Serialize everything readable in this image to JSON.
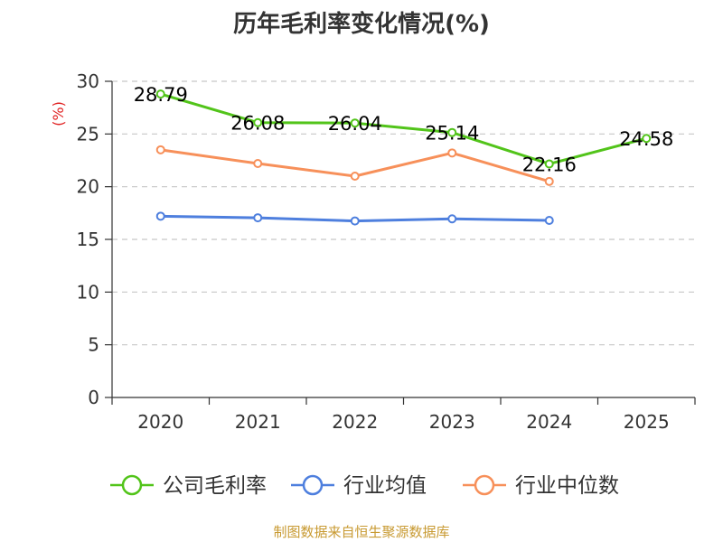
{
  "title": "历年毛利率变化情况(%)",
  "source_note": "制图数据来自恒生聚源数据库",
  "chart_data": {
    "type": "line",
    "title": "历年毛利率变化情况(%)",
    "ylabel": "(%)",
    "xlabel": "",
    "categories": [
      "2020",
      "2021",
      "2022",
      "2023",
      "2024",
      "2025"
    ],
    "ylim": [
      0,
      30
    ],
    "yticks": [
      0,
      5,
      10,
      15,
      20,
      25,
      30
    ],
    "grid": true,
    "legend_position": "bottom",
    "series": [
      {
        "name": "公司毛利率",
        "color": "#52c41a",
        "values": [
          28.79,
          26.08,
          26.04,
          25.14,
          22.16,
          24.58
        ],
        "labels": [
          "28.79",
          "26.08",
          "26.04",
          "25.14",
          "22.16",
          "24.58"
        ]
      },
      {
        "name": "行业均值",
        "color": "#4e7fde",
        "values": [
          17.2,
          17.05,
          16.75,
          16.95,
          16.8,
          null
        ]
      },
      {
        "name": "行业中位数",
        "color": "#f7905a",
        "values": [
          23.5,
          22.2,
          21.0,
          23.2,
          20.5,
          null
        ]
      }
    ]
  }
}
